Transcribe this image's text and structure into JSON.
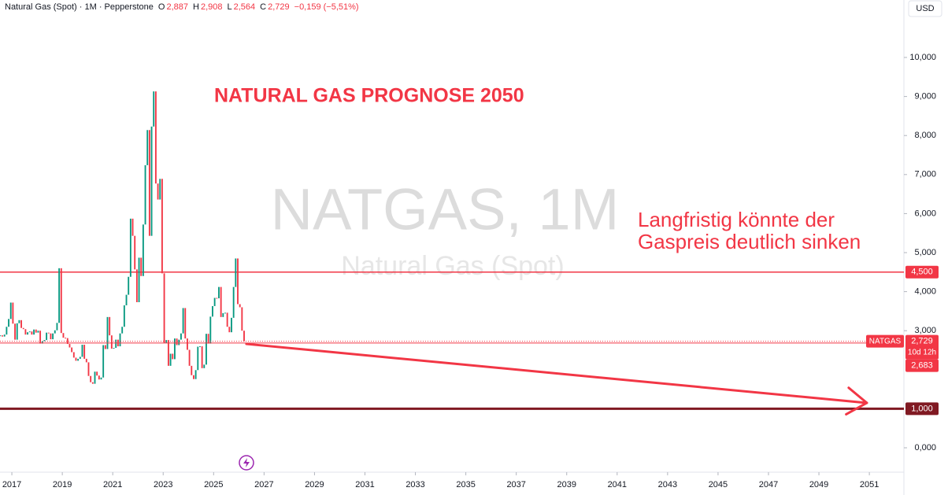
{
  "chart_data": {
    "type": "candlestick",
    "header": {
      "symbol": "Natural Gas (Spot) · 1M · Pepperstone",
      "ohlc": [
        {
          "key": "O",
          "value": "2,887"
        },
        {
          "key": "H",
          "value": "2,908"
        },
        {
          "key": "L",
          "value": "2,564"
        },
        {
          "key": "C",
          "value": "2,729"
        }
      ],
      "change": "−0,159 (−5,51%)"
    },
    "currency": "USD",
    "watermark": "NATGAS, 1M",
    "watermark_sub": "Natural Gas (Spot)",
    "title": "NATURAL GAS PROGNOSE 2050",
    "annotation": [
      "Langfristig könnte der",
      "Gaspreis deutlich sinken"
    ],
    "up_color": "#089981",
    "down_color": "#f23645",
    "x": [
      "2016-07",
      "2016-08",
      "2016-09",
      "2016-10",
      "2016-11",
      "2016-12",
      "2017-01",
      "2017-02",
      "2017-03",
      "2017-04",
      "2017-05",
      "2017-06",
      "2017-07",
      "2017-08",
      "2017-09",
      "2017-10",
      "2017-11",
      "2017-12",
      "2018-01",
      "2018-02",
      "2018-03",
      "2018-04",
      "2018-05",
      "2018-06",
      "2018-07",
      "2018-08",
      "2018-09",
      "2018-10",
      "2018-11",
      "2018-12",
      "2019-01",
      "2019-02",
      "2019-03",
      "2019-04",
      "2019-05",
      "2019-06",
      "2019-07",
      "2019-08",
      "2019-09",
      "2019-10",
      "2019-11",
      "2019-12",
      "2020-01",
      "2020-02",
      "2020-03",
      "2020-04",
      "2020-05",
      "2020-06",
      "2020-07",
      "2020-08",
      "2020-09",
      "2020-10",
      "2020-11",
      "2020-12",
      "2021-01",
      "2021-02",
      "2021-03",
      "2021-04",
      "2021-05",
      "2021-06",
      "2021-07",
      "2021-08",
      "2021-09",
      "2021-10",
      "2021-11",
      "2021-12",
      "2022-01",
      "2022-02",
      "2022-03",
      "2022-04",
      "2022-05",
      "2022-06",
      "2022-07",
      "2022-08",
      "2022-09",
      "2022-10",
      "2022-11",
      "2022-12",
      "2023-01",
      "2023-02",
      "2023-03",
      "2023-04",
      "2023-05",
      "2023-06",
      "2023-07",
      "2023-08",
      "2023-09",
      "2023-10",
      "2023-11",
      "2023-12",
      "2024-01",
      "2024-02",
      "2024-03",
      "2024-04",
      "2024-05",
      "2024-06",
      "2024-07",
      "2024-08",
      "2024-09",
      "2024-10",
      "2024-11",
      "2024-12",
      "2025-01",
      "2025-02",
      "2025-03",
      "2025-04",
      "2025-05",
      "2025-06",
      "2025-07",
      "2025-08",
      "2025-09",
      "2025-10",
      "2025-11",
      "2025-12",
      "2026-01",
      "2026-02",
      "2026-03"
    ],
    "close": [
      2.88,
      2.85,
      2.9,
      3.1,
      3.3,
      3.72,
      3.18,
      2.77,
      3.19,
      3.27,
      3.07,
      3.04,
      2.9,
      2.96,
      2.98,
      2.9,
      3.03,
      2.95,
      3.0,
      2.67,
      2.73,
      2.76,
      2.95,
      2.93,
      2.78,
      2.93,
      3.01,
      3.2,
      4.6,
      2.94,
      2.82,
      2.81,
      2.66,
      2.57,
      2.45,
      2.31,
      2.23,
      2.28,
      2.33,
      2.64,
      2.28,
      2.19,
      1.84,
      1.68,
      1.64,
      1.95,
      1.85,
      1.75,
      1.8,
      2.63,
      2.53,
      3.35,
      2.88,
      2.54,
      2.56,
      2.77,
      2.6,
      2.93,
      3.1,
      3.65,
      3.92,
      4.38,
      5.87,
      5.43,
      4.57,
      3.73,
      4.87,
      4.4,
      5.72,
      7.24,
      8.14,
      5.43,
      8.23,
      9.13,
      6.77,
      6.36,
      6.89,
      4.47,
      2.68,
      2.76,
      2.1,
      2.41,
      2.27,
      2.8,
      2.63,
      2.77,
      2.93,
      3.58,
      2.8,
      2.51,
      2.1,
      1.86,
      1.76,
      1.99,
      2.59,
      2.6,
      2.04,
      2.13,
      2.92,
      2.67,
      3.36,
      3.63,
      3.84,
      3.83,
      4.12,
      3.35,
      3.45,
      3.46,
      3.1,
      2.96,
      3.33,
      4.12,
      4.85,
      3.68,
      3.6,
      3.0,
      2.729
    ],
    "xlim": [
      2016.53,
      2052.37
    ],
    "xticks": [
      2017,
      2019,
      2021,
      2023,
      2025,
      2027,
      2029,
      2031,
      2033,
      2035,
      2037,
      2039,
      2041,
      2043,
      2045,
      2047,
      2049,
      2051
    ],
    "ylim": [
      -0.625,
      11.472
    ],
    "yticks": [
      {
        "value": 0,
        "label": "0,000"
      },
      {
        "value": 3,
        "label": "3,000"
      },
      {
        "value": 4,
        "label": "4,000"
      },
      {
        "value": 5,
        "label": "5,000"
      },
      {
        "value": 6,
        "label": "6,000"
      },
      {
        "value": 7,
        "label": "7,000"
      },
      {
        "value": 8,
        "label": "8,000"
      },
      {
        "value": 9,
        "label": "9,000"
      },
      {
        "value": 10,
        "label": "10,000"
      }
    ],
    "hlines": [
      {
        "value": 4.5,
        "label": "4,500",
        "color": "#f23645"
      },
      {
        "value": 1,
        "label": "1,000",
        "color": "#801922"
      }
    ],
    "last_price": {
      "name": "NATGAS",
      "value": 2.729,
      "label": "2,729",
      "countdown": "10d 12h"
    },
    "prev_close": {
      "value": 2.683,
      "label": "2,683"
    },
    "arrow": {
      "x": [
        2026.3,
        2050.9
      ],
      "y": [
        2.66,
        1.15
      ],
      "color": "#f23645"
    }
  }
}
